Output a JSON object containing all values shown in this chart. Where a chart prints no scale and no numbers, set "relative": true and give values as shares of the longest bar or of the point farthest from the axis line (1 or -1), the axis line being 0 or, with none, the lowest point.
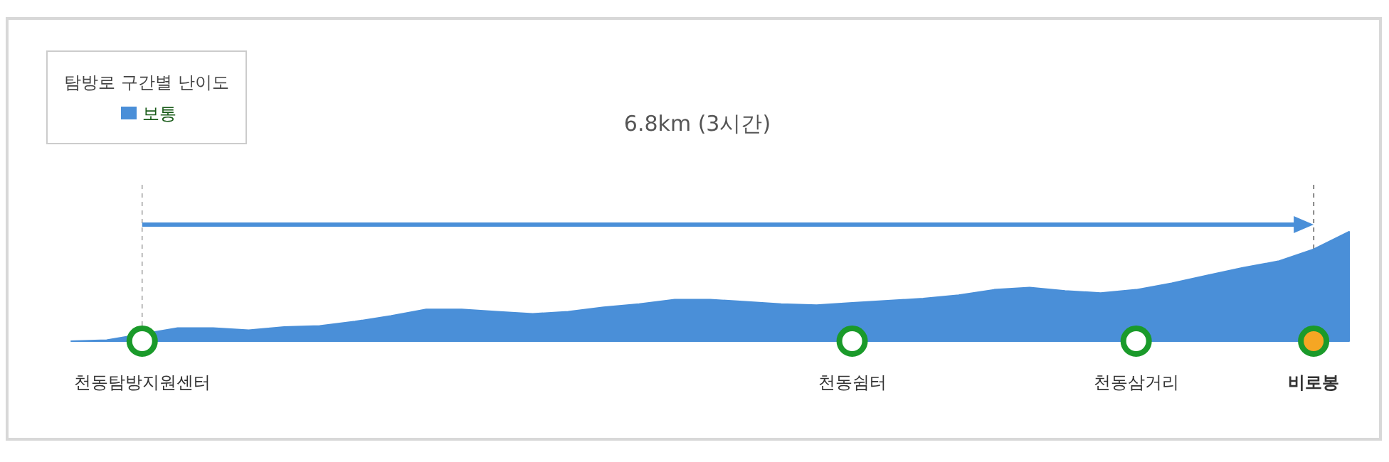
{
  "chart_data": {
    "type": "area",
    "relative": true,
    "legend_title": "탐방로 구간별 난이도",
    "legend": "top left",
    "annotations": [
      "6.8km (3시간)"
    ],
    "categories": [
      null,
      null,
      "천동탐방지원센터",
      null,
      null,
      null,
      null,
      null,
      null,
      null,
      null,
      null,
      null,
      null,
      null,
      null,
      null,
      null,
      null,
      null,
      null,
      null,
      "천동쉼터",
      null,
      null,
      null,
      null,
      null,
      null,
      null,
      "천동삼거리",
      null,
      null,
      null,
      null,
      "비로봉",
      null
    ],
    "series": [
      {
        "name": "보통",
        "color": "#4a8fd8",
        "values": [
          0,
          0.01,
          null,
          0.12,
          0.12,
          0.1,
          0.13,
          0.14,
          0.18,
          0.23,
          0.29,
          0.29,
          0.27,
          0.25,
          0.27,
          0.31,
          0.34,
          0.38,
          0.38,
          0.36,
          0.34,
          0.33,
          0.35,
          0.37,
          0.39,
          0.42,
          0.47,
          0.49,
          0.46,
          0.44,
          0.47,
          0.53,
          0.6,
          0.67,
          0.73,
          0.84,
          1
        ]
      },
      {
        "type": "scatter",
        "values": [
          null,
          null,
          0,
          null,
          null,
          null,
          null,
          null,
          null,
          null,
          null,
          null,
          null,
          null,
          null,
          null,
          null,
          null,
          null,
          null,
          null,
          null,
          0,
          null,
          null,
          null,
          null,
          null,
          null,
          null,
          0,
          null,
          null,
          null,
          null,
          0,
          null
        ],
        "colors": [
          null,
          null,
          "#ffffff",
          null,
          null,
          null,
          null,
          null,
          null,
          null,
          null,
          null,
          null,
          null,
          null,
          null,
          null,
          null,
          null,
          null,
          null,
          null,
          "#ffffff",
          null,
          null,
          null,
          null,
          null,
          null,
          null,
          "#ffffff",
          null,
          null,
          null,
          null,
          "#f5a623",
          null
        ]
      }
    ]
  }
}
